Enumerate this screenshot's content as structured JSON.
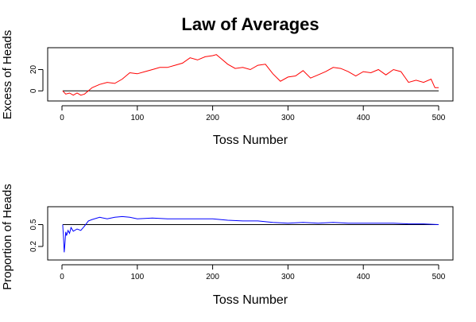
{
  "chart_data": {
    "title": "Law of Averages",
    "panels": [
      {
        "type": "line",
        "name": "excess-of-heads",
        "xlabel": "Toss Number",
        "ylabel": "Excess of Heads",
        "xlim": [
          0,
          500
        ],
        "ylim": [
          -5,
          36
        ],
        "xticks": [
          0,
          100,
          200,
          300,
          400,
          500
        ],
        "yticks": [
          0,
          20
        ],
        "reference_line": 0,
        "series": [
          {
            "color": "#ff0000",
            "x": [
              1,
              5,
              10,
              15,
              20,
              25,
              30,
              40,
              50,
              60,
              70,
              80,
              90,
              100,
              110,
              120,
              130,
              140,
              150,
              160,
              170,
              180,
              190,
              200,
              205,
              210,
              220,
              230,
              240,
              250,
              260,
              270,
              280,
              290,
              300,
              310,
              320,
              330,
              340,
              350,
              360,
              370,
              380,
              390,
              400,
              410,
              420,
              430,
              440,
              450,
              460,
              470,
              480,
              490,
              495,
              500
            ],
            "y": [
              0,
              -3,
              -2,
              -4,
              -2,
              -4,
              -3,
              3,
              6,
              8,
              7,
              11,
              17,
              16,
              18,
              20,
              22,
              22,
              24,
              26,
              31,
              29,
              32,
              33,
              34,
              31,
              25,
              21,
              22,
              20,
              24,
              25,
              16,
              9,
              13,
              14,
              19,
              12,
              15,
              18,
              22,
              21,
              18,
              14,
              18,
              17,
              20,
              15,
              20,
              18,
              8,
              10,
              8,
              11,
              3,
              3
            ]
          }
        ]
      },
      {
        "type": "line",
        "name": "proportion-of-heads",
        "xlabel": "Toss Number",
        "ylabel": "Proportion of Heads",
        "xlim": [
          0,
          500
        ],
        "ylim": [
          0.08,
          0.68
        ],
        "xticks": [
          0,
          100,
          200,
          300,
          400,
          500
        ],
        "yticks": [
          0.2,
          0.5
        ],
        "reference_line": 0.5,
        "series": [
          {
            "color": "#0000ff",
            "x": [
              1,
              2,
              3,
              4,
              5,
              6,
              8,
              10,
              12,
              15,
              20,
              25,
              30,
              35,
              40,
              50,
              60,
              70,
              80,
              90,
              100,
              120,
              140,
              160,
              180,
              200,
              220,
              240,
              260,
              280,
              300,
              320,
              340,
              360,
              380,
              400,
              420,
              440,
              460,
              480,
              500
            ],
            "y": [
              0.5,
              0.33,
              0.12,
              0.25,
              0.4,
              0.35,
              0.42,
              0.38,
              0.46,
              0.41,
              0.44,
              0.42,
              0.48,
              0.55,
              0.57,
              0.6,
              0.58,
              0.6,
              0.61,
              0.6,
              0.58,
              0.59,
              0.58,
              0.58,
              0.58,
              0.58,
              0.56,
              0.55,
              0.55,
              0.53,
              0.52,
              0.53,
              0.52,
              0.53,
              0.52,
              0.52,
              0.52,
              0.52,
              0.51,
              0.51,
              0.5
            ]
          }
        ]
      }
    ]
  }
}
